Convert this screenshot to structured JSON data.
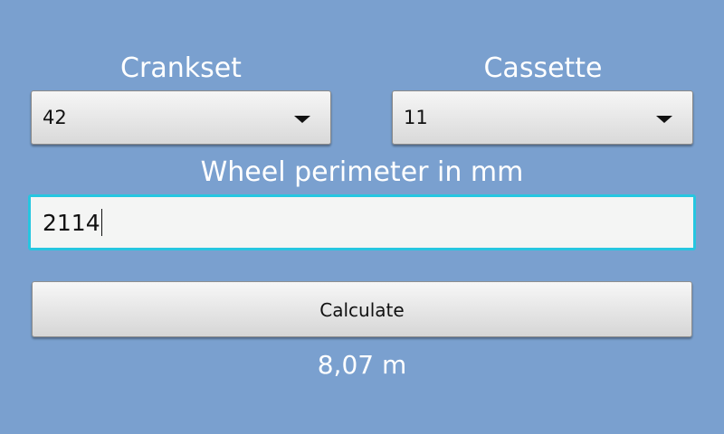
{
  "crankset": {
    "label": "Crankset",
    "selected": "42"
  },
  "cassette": {
    "label": "Cassette",
    "selected": "11"
  },
  "wheel": {
    "label": "Wheel perimeter in mm",
    "value": "2114"
  },
  "calculate_button": {
    "label": "Calculate"
  },
  "result": {
    "text": "8,07 m"
  },
  "colors": {
    "background": "#7aa0cf",
    "focus_border": "#26c6e0",
    "label_text": "#ffffff"
  }
}
